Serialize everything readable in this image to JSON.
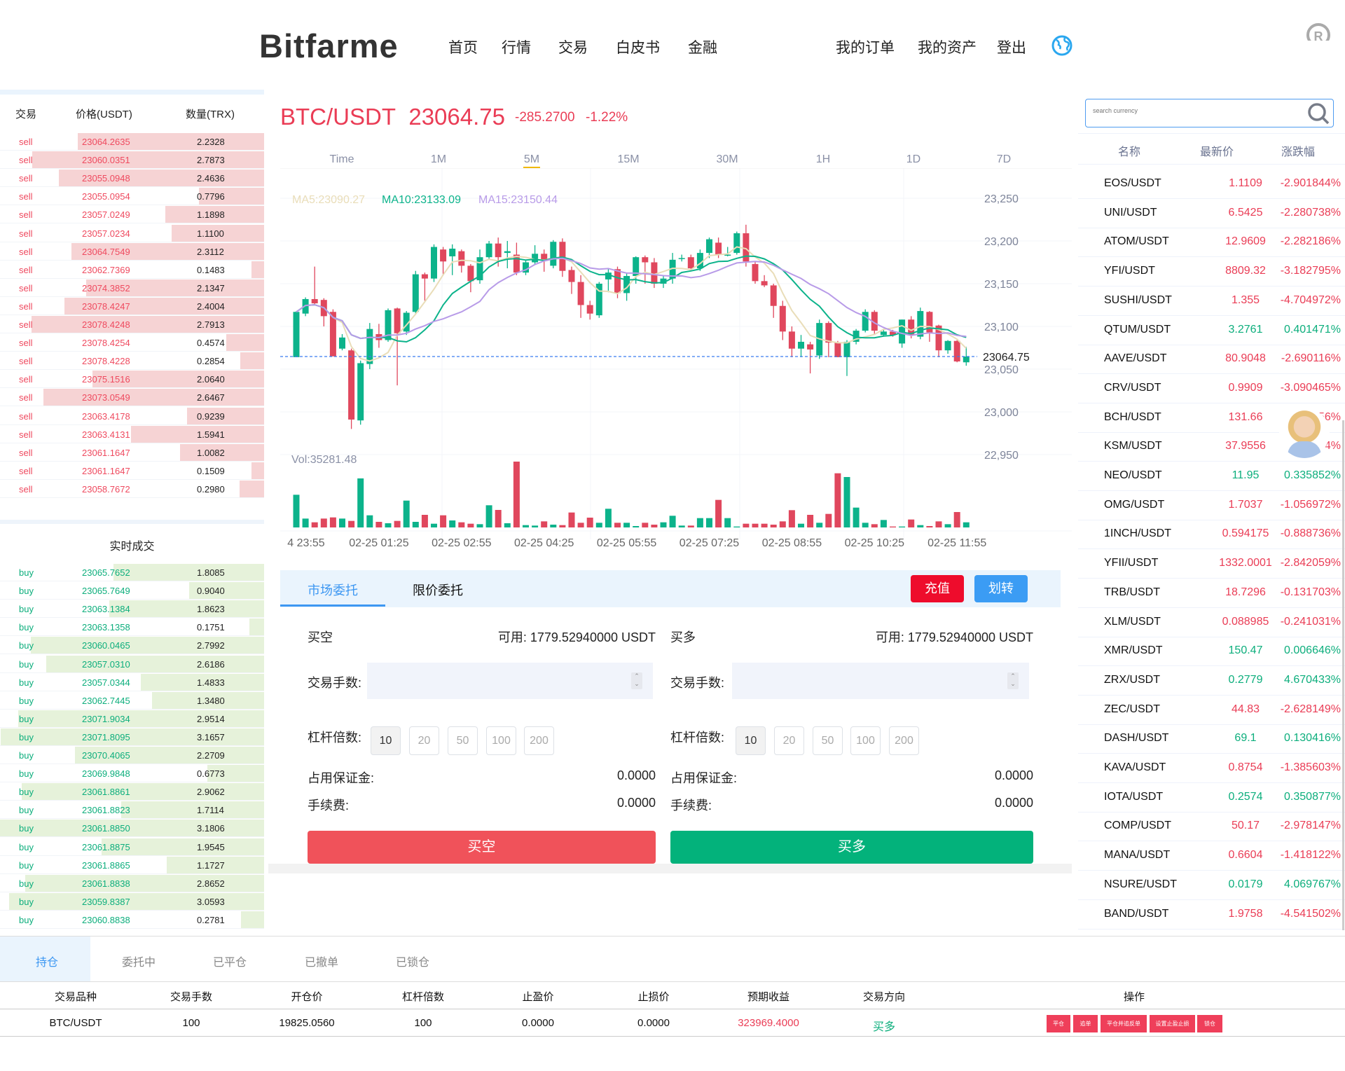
{
  "header": {
    "logo": "Bitfarme",
    "nav": [
      "首页",
      "行情",
      "交易",
      "白皮书",
      "金融"
    ],
    "right": [
      "我的订单",
      "我的资产",
      "登出"
    ]
  },
  "orderbook": {
    "headers": [
      "交易",
      "价格(USDT)",
      "数量(TRX)"
    ],
    "sells": [
      [
        "sell",
        "23064.2635",
        "2.2328"
      ],
      [
        "sell",
        "23060.0351",
        "2.7873"
      ],
      [
        "sell",
        "23055.0948",
        "2.4636"
      ],
      [
        "sell",
        "23055.0954",
        "0.7796"
      ],
      [
        "sell",
        "23057.0249",
        "1.1898"
      ],
      [
        "sell",
        "23057.0234",
        "1.1100"
      ],
      [
        "sell",
        "23064.7549",
        "2.3112"
      ],
      [
        "sell",
        "23062.7369",
        "0.1483"
      ],
      [
        "sell",
        "23074.3852",
        "2.1347"
      ],
      [
        "sell",
        "23078.4247",
        "2.4004"
      ],
      [
        "sell",
        "23078.4248",
        "2.7913"
      ],
      [
        "sell",
        "23078.4254",
        "0.4574"
      ],
      [
        "sell",
        "23078.4228",
        "0.2854"
      ],
      [
        "sell",
        "23075.1516",
        "2.0640"
      ],
      [
        "sell",
        "23073.0549",
        "2.6467"
      ],
      [
        "sell",
        "23063.4178",
        "0.9239"
      ],
      [
        "sell",
        "23063.4131",
        "1.5941"
      ],
      [
        "sell",
        "23061.1647",
        "1.0082"
      ],
      [
        "sell",
        "23061.1647",
        "0.1509"
      ],
      [
        "sell",
        "23058.7672",
        "0.2980"
      ]
    ],
    "trades_title": "实时成交",
    "buys": [
      [
        "buy",
        "23065.7652",
        "1.8085"
      ],
      [
        "buy",
        "23065.7649",
        "0.9040"
      ],
      [
        "buy",
        "23063.1384",
        "1.8623"
      ],
      [
        "buy",
        "23063.1358",
        "0.1751"
      ],
      [
        "buy",
        "23060.0465",
        "2.7992"
      ],
      [
        "buy",
        "23057.0310",
        "2.6186"
      ],
      [
        "buy",
        "23057.0344",
        "1.4833"
      ],
      [
        "buy",
        "23062.7445",
        "1.3480"
      ],
      [
        "buy",
        "23071.9034",
        "2.9514"
      ],
      [
        "buy",
        "23071.8095",
        "3.1657"
      ],
      [
        "buy",
        "23070.4065",
        "2.2709"
      ],
      [
        "buy",
        "23069.9848",
        "0.6773"
      ],
      [
        "buy",
        "23061.8861",
        "2.9062"
      ],
      [
        "buy",
        "23061.8823",
        "1.7114"
      ],
      [
        "buy",
        "23061.8850",
        "3.1806"
      ],
      [
        "buy",
        "23061.8875",
        "1.9545"
      ],
      [
        "buy",
        "23061.8865",
        "1.1727"
      ],
      [
        "buy",
        "23061.8838",
        "2.8652"
      ],
      [
        "buy",
        "23059.8387",
        "3.0593"
      ],
      [
        "buy",
        "23060.8838",
        "0.2781"
      ]
    ]
  },
  "ticker": {
    "pair": "BTC/USDT",
    "price": "23064.75",
    "change": "-285.2700",
    "change_pct": "-1.22%"
  },
  "intervals": [
    "Time",
    "1M",
    "5M",
    "15M",
    "30M",
    "1H",
    "1D",
    "7D"
  ],
  "active_interval": "5M",
  "ma": {
    "ma5": "MA5:23090.27",
    "ma10": "MA10:23133.09",
    "ma15": "MA15:23150.44"
  },
  "volume_label": "Vol:35281.48",
  "chart_data": {
    "type": "candlestick",
    "ylim": [
      22950,
      23250
    ],
    "yticks": [
      "23,250",
      "23,200",
      "23,150",
      "23,100",
      "23,050",
      "23,000",
      "22,950"
    ],
    "ytick_values": [
      23250,
      23200,
      23150,
      23100,
      23050,
      23000,
      22950
    ],
    "last_price": 23064.75,
    "last_price_label": "23064.75",
    "xticks": [
      "4 23:55",
      "02-25 01:25",
      "02-25 02:55",
      "02-25 04:25",
      "02-25 05:55",
      "02-25 07:25",
      "02-25 08:55",
      "02-25 10:25",
      "02-25 11:55"
    ],
    "xtick_every": 9,
    "colors": {
      "up": "#0cb38b",
      "down": "#e0475d",
      "ma5": "#e9ddb8",
      "ma10": "#0cb38b",
      "ma15": "#b89be8"
    },
    "ohlc": [
      [
        23064,
        23118,
        23064,
        23117
      ],
      [
        23115,
        23134,
        23112,
        23132
      ],
      [
        23132,
        23170,
        23125,
        23127
      ],
      [
        23131,
        23133,
        23100,
        23112
      ],
      [
        23117,
        23120,
        23065,
        23065
      ],
      [
        23074,
        23091,
        23072,
        23087
      ],
      [
        23072,
        23074,
        22980,
        22991
      ],
      [
        22990,
        23060,
        22985,
        23057
      ],
      [
        23056,
        23104,
        23050,
        23097
      ],
      [
        23091,
        23103,
        23075,
        23084
      ],
      [
        23084,
        23121,
        23082,
        23119
      ],
      [
        23121,
        23122,
        23031,
        23092
      ],
      [
        23094,
        23118,
        23090,
        23116
      ],
      [
        23117,
        23165,
        23115,
        23161
      ],
      [
        23161,
        23163,
        23130,
        23156
      ],
      [
        23156,
        23196,
        23152,
        23193
      ],
      [
        23190,
        23193,
        23160,
        23176
      ],
      [
        23182,
        23196,
        23160,
        23191
      ],
      [
        23188,
        23190,
        23163,
        23171
      ],
      [
        23171,
        23173,
        23140,
        23153
      ],
      [
        23154,
        23190,
        23150,
        23181
      ],
      [
        23181,
        23200,
        23178,
        23197
      ],
      [
        23197,
        23204,
        23170,
        23181
      ],
      [
        23186,
        23200,
        23168,
        23188
      ],
      [
        23184,
        23198,
        23160,
        23163
      ],
      [
        23163,
        23178,
        23160,
        23175
      ],
      [
        23175,
        23195,
        23172,
        23185
      ],
      [
        23185,
        23190,
        23164,
        23177
      ],
      [
        23171,
        23201,
        23168,
        23199
      ],
      [
        23199,
        23203,
        23158,
        23165
      ],
      [
        23166,
        23170,
        23138,
        23152
      ],
      [
        23152,
        23160,
        23110,
        23125
      ],
      [
        23125,
        23130,
        23108,
        23115
      ],
      [
        23113,
        23152,
        23110,
        23150
      ],
      [
        23155,
        23168,
        23140,
        23163
      ],
      [
        23167,
        23170,
        23133,
        23139
      ],
      [
        23139,
        23162,
        23130,
        23159
      ],
      [
        23159,
        23182,
        23150,
        23181
      ],
      [
        23181,
        23183,
        23150,
        23175
      ],
      [
        23175,
        23180,
        23145,
        23150
      ],
      [
        23150,
        23160,
        23145,
        23156
      ],
      [
        23156,
        23186,
        23150,
        23178
      ],
      [
        23180,
        23184,
        23176,
        23180
      ],
      [
        23181,
        23184,
        23165,
        23168
      ],
      [
        23168,
        23190,
        23165,
        23186
      ],
      [
        23186,
        23204,
        23180,
        23202
      ],
      [
        23198,
        23204,
        23180,
        23184
      ],
      [
        23184,
        23193,
        23182,
        23184
      ],
      [
        23186,
        23211,
        23184,
        23209
      ],
      [
        23209,
        23219,
        23170,
        23176
      ],
      [
        23173,
        23176,
        23150,
        23153
      ],
      [
        23153,
        23160,
        23146,
        23148
      ],
      [
        23148,
        23150,
        23110,
        23124
      ],
      [
        23124,
        23130,
        23084,
        23094
      ],
      [
        23094,
        23100,
        23064,
        23074
      ],
      [
        23074,
        23090,
        23064,
        23082
      ],
      [
        23079,
        23082,
        23045,
        23073
      ],
      [
        23066,
        23108,
        23062,
        23104
      ],
      [
        23104,
        23106,
        23064,
        23081
      ],
      [
        23081,
        23083,
        23064,
        23064
      ],
      [
        23064,
        23084,
        23042,
        23082
      ],
      [
        23082,
        23097,
        23079,
        23095
      ],
      [
        23095,
        23120,
        23093,
        23117
      ],
      [
        23117,
        23119,
        23090,
        23095
      ],
      [
        23090,
        23097,
        23088,
        23094
      ],
      [
        23094,
        23096,
        23088,
        23090
      ],
      [
        23080,
        23108,
        23075,
        23108
      ],
      [
        23108,
        23112,
        23086,
        23090
      ],
      [
        23088,
        23122,
        23085,
        23118
      ],
      [
        23117,
        23118,
        23082,
        23093
      ],
      [
        23101,
        23102,
        23064,
        23072
      ],
      [
        23072,
        23084,
        23068,
        23083
      ],
      [
        23083,
        23084,
        23058,
        23059
      ],
      [
        23058,
        23076,
        23054,
        23064.75
      ]
    ],
    "volume": [
      140,
      38,
      22,
      38,
      43,
      38,
      28,
      210,
      52,
      24,
      18,
      28,
      115,
      24,
      54,
      16,
      52,
      30,
      22,
      16,
      14,
      95,
      75,
      18,
      282,
      10,
      8,
      26,
      12,
      10,
      64,
      20,
      42,
      20,
      80,
      20,
      20,
      6,
      20,
      12,
      22,
      50,
      8,
      8,
      40,
      40,
      118,
      40,
      4,
      16,
      16,
      16,
      12,
      26,
      74,
      16,
      54,
      20,
      58,
      232,
      216,
      85,
      20,
      14,
      32,
      4,
      4,
      34,
      10,
      6,
      26,
      14,
      66,
      22
    ]
  },
  "trade": {
    "tabs": [
      "市场委托",
      "限价委托"
    ],
    "deposit": "充值",
    "transfer": "划转",
    "short": {
      "title": "买空",
      "available": "可用: 1779.52940000 USDT",
      "qty_label": "交易手数:",
      "lev_label": "杠杆倍数:",
      "margin_label": "占用保证金:",
      "margin": "0.0000",
      "fee_label": "手续费:",
      "fee": "0.0000",
      "button": "买空"
    },
    "long": {
      "title": "买多",
      "available": "可用: 1779.52940000 USDT",
      "qty_label": "交易手数:",
      "lev_label": "杠杆倍数:",
      "margin_label": "占用保证金:",
      "margin": "0.0000",
      "fee_label": "手续费:",
      "fee": "0.0000",
      "button": "买多"
    },
    "leverage": [
      "10",
      "20",
      "50",
      "100",
      "200"
    ],
    "colors": {
      "short": "#f0525a",
      "long": "#03b27b",
      "deposit": "#ee0c2c",
      "transfer": "#3b9cf4"
    }
  },
  "markets": {
    "search_placeholder": "search currency",
    "headers": [
      "名称",
      "最新价",
      "涨跌幅"
    ],
    "rows": [
      [
        "EOS/USDT",
        "1.1109",
        "-2.901844%"
      ],
      [
        "UNI/USDT",
        "6.5425",
        "-2.280738%"
      ],
      [
        "ATOM/USDT",
        "12.9609",
        "-2.282186%"
      ],
      [
        "YFI/USDT",
        "8809.32",
        "-3.182795%"
      ],
      [
        "SUSHI/USDT",
        "1.355",
        "-4.704972%"
      ],
      [
        "QTUM/USDT",
        "3.2761",
        "0.401471%"
      ],
      [
        "AAVE/USDT",
        "80.9048",
        "-2.690116%"
      ],
      [
        "CRV/USDT",
        "0.9909",
        "-3.090465%"
      ],
      [
        "BCH/USDT",
        "131.66",
        "-1.56%"
      ],
      [
        "KSM/USDT",
        "37.9556",
        "-3.4%"
      ],
      [
        "NEO/USDT",
        "11.95",
        "0.335852%"
      ],
      [
        "OMG/USDT",
        "1.7037",
        "-1.056972%"
      ],
      [
        "1INCH/USDT",
        "0.594175",
        "-0.888736%"
      ],
      [
        "YFII/USDT",
        "1332.0001",
        "-2.842059%"
      ],
      [
        "TRB/USDT",
        "18.7296",
        "-0.131703%"
      ],
      [
        "XLM/USDT",
        "0.088985",
        "-0.241031%"
      ],
      [
        "XMR/USDT",
        "150.47",
        "0.006646%"
      ],
      [
        "ZRX/USDT",
        "0.2779",
        "4.670433%"
      ],
      [
        "ZEC/USDT",
        "44.83",
        "-2.628149%"
      ],
      [
        "DASH/USDT",
        "69.1",
        "0.130416%"
      ],
      [
        "KAVA/USDT",
        "0.8754",
        "-1.385603%"
      ],
      [
        "IOTA/USDT",
        "0.2574",
        "0.350877%"
      ],
      [
        "COMP/USDT",
        "50.17",
        "-2.978147%"
      ],
      [
        "MANA/USDT",
        "0.6604",
        "-1.418122%"
      ],
      [
        "NSURE/USDT",
        "0.0179",
        "4.069767%"
      ],
      [
        "BAND/USDT",
        "1.9758",
        "-4.541502%"
      ]
    ]
  },
  "positions": {
    "tabs": [
      "持仓",
      "委托中",
      "已平仓",
      "已撤单",
      "已锁仓"
    ],
    "headers": [
      "交易品种",
      "交易手数",
      "开仓价",
      "杠杆倍数",
      "止盈价",
      "止损价",
      "预期收益",
      "交易方向",
      "操作"
    ],
    "row": [
      "BTC/USDT",
      "100",
      "19825.0560",
      "100",
      "0.0000",
      "0.0000",
      "323969.4000",
      "买多"
    ],
    "actions": [
      "平仓",
      "追单",
      "平仓并追反单",
      "设置止盈止损",
      "锁仓"
    ]
  }
}
